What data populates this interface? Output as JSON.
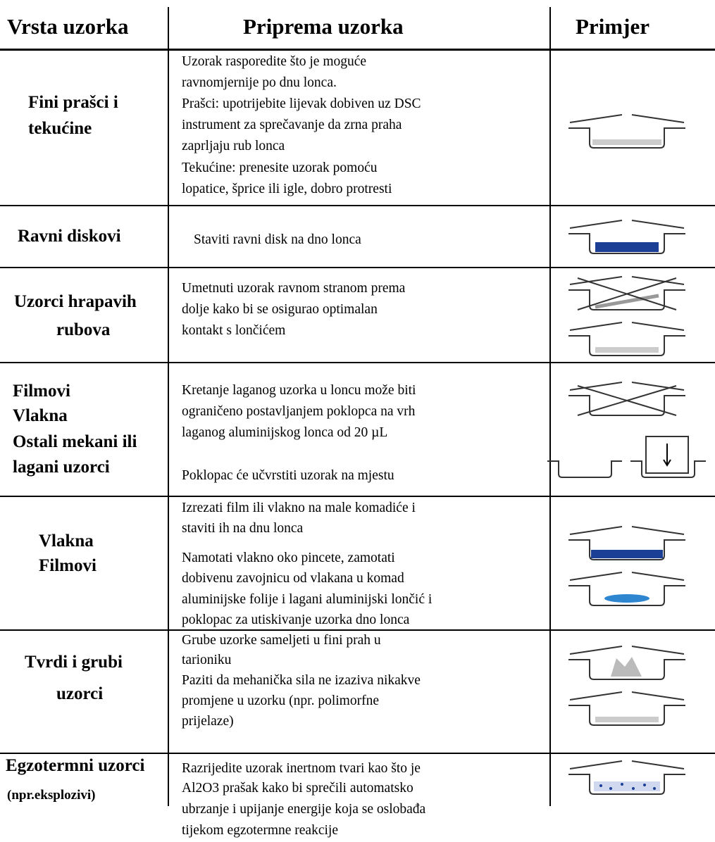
{
  "table": {
    "header": [
      "Vrsta uzorka",
      "Priprema uzorka",
      "Primjer"
    ],
    "rows": [
      {
        "type": [
          "Fini prašci i",
          "tekućine"
        ],
        "preparation": [
          "Uzorak rasporedite što je moguće",
          "ravnomjernije po dnu lonca.",
          "Prašci: upotrijebite lijevak dobiven uz DSC",
          "instrument za sprečavanje da zrna praha",
          "zaprljaju rub lonca",
          "Tekućine: prenesite uzorak pomoću",
          "lopatice, šprice ili igle, dobro protresti"
        ]
      },
      {
        "type": [
          "Ravni diskovi"
        ],
        "preparation": [
          "Staviti ravni disk na dno lonca"
        ]
      },
      {
        "type": [
          "Uzorci hrapavih",
          "rubova"
        ],
        "preparation": [
          "Umetnuti uzorak ravnom stranom prema",
          "dolje kako bi se osigurao optimalan",
          "kontakt s lončićem"
        ]
      },
      {
        "type": [
          "Filmovi",
          "Vlakna",
          "Ostali mekani ili",
          "lagani uzorci"
        ],
        "preparation": [
          "Kretanje laganog uzorka u loncu može biti",
          "ograničeno postavljanjem poklopca na vrh",
          "laganog aluminijskog lonca od 20 µL",
          "Poklopac će učvrstiti uzorak na mjestu"
        ]
      },
      {
        "type": [
          "Vlakna",
          "Filmovi"
        ],
        "preparation": [
          "Izrezati film ili vlakno na male komadiće i",
          "staviti ih na dnu lonca",
          "Namotati vlakno oko pincete, zamotati",
          "dobivenu zavojnicu od vlakana u komad",
          "aluminijske folije i lagani aluminijski lončić i",
          "poklopac za utiskivanje uzorka dno lonca"
        ]
      },
      {
        "type": [
          "Tvrdi i grubi",
          "uzorci"
        ],
        "preparation": [
          "Grube uzorke sameljeti u fini prah u",
          "tarioniku",
          "Paziti da mehanička sila ne izaziva nikakve",
          "promjene u uzorku (npr. polimorfne",
          "prijelaze)"
        ]
      },
      {
        "type": [
          "Egzotermni uzorci",
          "(npr.eksplozivi)"
        ],
        "preparation": [
          "Razrijedite uzorak inertnom tvari kao što je",
          "Al2O3 prašak kako bi sprečili automatsko",
          "ubrzanje i upijanje energije koja se oslobađa",
          "tijekom egzotermne reakcije"
        ]
      }
    ]
  }
}
